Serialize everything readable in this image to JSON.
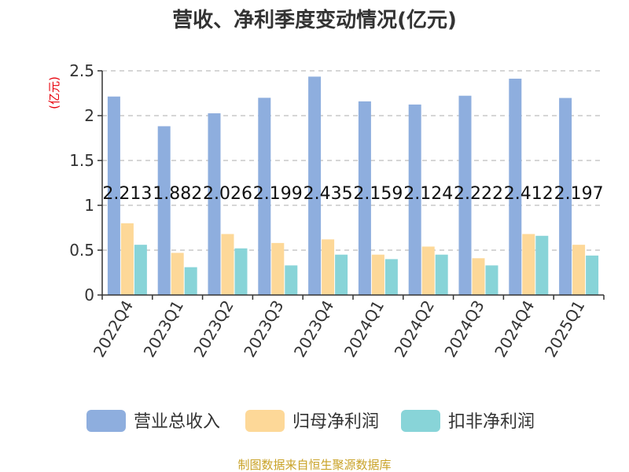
{
  "title": "营收、净利季度变动情况(亿元)",
  "unit_label": "(亿元)",
  "source_text": "制图数据来自恒生聚源数据库",
  "colors": {
    "revenue": "#8eaede",
    "net_profit": "#fdd898",
    "deducted_profit": "#88d4d8",
    "grid": "#c8c8c8",
    "axis": "#333333"
  },
  "chart_data": {
    "type": "bar",
    "title": "营收、净利季度变动情况(亿元)",
    "ylabel": "(亿元)",
    "ylim": [
      0,
      2.5
    ],
    "yticks": [
      "0",
      "0.5",
      "1",
      "1.5",
      "2",
      "2.5"
    ],
    "grid": true,
    "legend_position": "bottom",
    "categories": [
      "2022Q4",
      "2023Q1",
      "2023Q2",
      "2023Q3",
      "2023Q4",
      "2024Q1",
      "2024Q2",
      "2024Q3",
      "2024Q4",
      "2025Q1"
    ],
    "series": [
      {
        "name": "营业总收入",
        "values": [
          2.213,
          1.882,
          2.026,
          2.199,
          2.435,
          2.159,
          2.124,
          2.222,
          2.412,
          2.197
        ],
        "labels": [
          "2.213",
          "1.882",
          "2.026",
          "2.199",
          "2.435",
          "2.159",
          "2.124",
          "2.222",
          "2.412",
          "2.197"
        ]
      },
      {
        "name": "归母净利润",
        "values": [
          0.8,
          0.47,
          0.68,
          0.58,
          0.62,
          0.45,
          0.54,
          0.41,
          0.68,
          0.56
        ]
      },
      {
        "name": "扣非净利润",
        "values": [
          0.56,
          0.31,
          0.52,
          0.33,
          0.45,
          0.4,
          0.45,
          0.33,
          0.66,
          0.44
        ]
      }
    ]
  }
}
